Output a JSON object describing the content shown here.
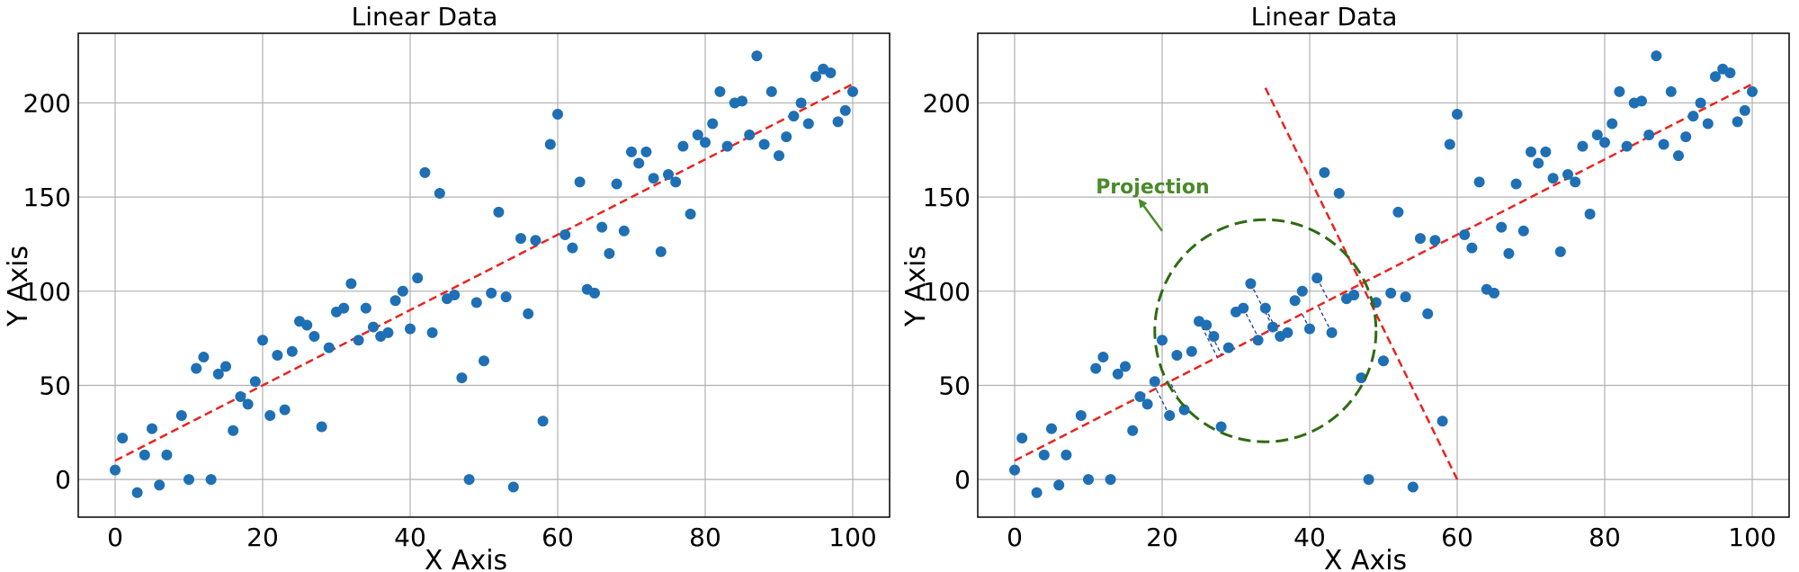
{
  "chart_data": [
    {
      "type": "scatter",
      "title": "Linear Data",
      "xlabel": "X Axis",
      "ylabel": "Y Axis",
      "xlim": [
        -5,
        105
      ],
      "ylim": [
        -20,
        237
      ],
      "xticks": [
        "0",
        "20",
        "40",
        "60",
        "80",
        "100"
      ],
      "yticks": [
        "0",
        "50",
        "100",
        "150",
        "200"
      ],
      "grid": true,
      "point_color": "#1f6fb5",
      "line_color": "#e8231f",
      "points": {
        "x": [
          0,
          1,
          3,
          4,
          5,
          6,
          7,
          9,
          10,
          11,
          12,
          13,
          14,
          15,
          16,
          17,
          18,
          19,
          20,
          21,
          22,
          23,
          24,
          25,
          26,
          27,
          28,
          29,
          30,
          31,
          32,
          33,
          34,
          35,
          36,
          37,
          38,
          39,
          40,
          41,
          42,
          43,
          44,
          45,
          46,
          47,
          48,
          49,
          50,
          51,
          52,
          53,
          54,
          55,
          56,
          57,
          58,
          59,
          60,
          61,
          62,
          63,
          64,
          65,
          66,
          67,
          68,
          69,
          70,
          71,
          72,
          73,
          74,
          75,
          76,
          77,
          78,
          79,
          80,
          81,
          82,
          83,
          84,
          85,
          86,
          87,
          88,
          89,
          90,
          91,
          92,
          93,
          94,
          95,
          96,
          97,
          98,
          99,
          100
        ],
        "y": [
          5,
          22,
          -7,
          13,
          27,
          -3,
          13,
          34,
          0,
          59,
          65,
          0,
          56,
          60,
          26,
          44,
          40,
          52,
          74,
          34,
          66,
          37,
          68,
          84,
          82,
          76,
          28,
          70,
          89,
          91,
          104,
          74,
          91,
          81,
          76,
          78,
          95,
          100,
          80,
          107,
          163,
          78,
          152,
          96,
          98,
          54,
          0,
          94,
          63,
          99,
          142,
          97,
          -4,
          128,
          88,
          127,
          31,
          178,
          194,
          130,
          123,
          158,
          101,
          99,
          134,
          120,
          157,
          132,
          174,
          168,
          174,
          160,
          121,
          162,
          158,
          177,
          141,
          183,
          179,
          189,
          206,
          177,
          200,
          201,
          183,
          225,
          178,
          206,
          172,
          182,
          193,
          200,
          189,
          214,
          218,
          216,
          190,
          196,
          206
        ]
      },
      "fit_line": {
        "x": [
          0,
          100
        ],
        "y": [
          10,
          210
        ]
      }
    },
    {
      "type": "scatter",
      "title": "Linear Data",
      "xlabel": "X Axis",
      "ylabel": "Y Axis",
      "xlim": [
        -5,
        105
      ],
      "ylim": [
        -20,
        237
      ],
      "xticks": [
        "0",
        "20",
        "40",
        "60",
        "80",
        "100"
      ],
      "yticks": [
        "0",
        "50",
        "100",
        "150",
        "200"
      ],
      "grid": true,
      "point_color": "#1f6fb5",
      "line_color": "#e8231f",
      "points": {
        "x": [
          0,
          1,
          3,
          4,
          5,
          6,
          7,
          9,
          10,
          11,
          12,
          13,
          14,
          15,
          16,
          17,
          18,
          19,
          20,
          21,
          22,
          23,
          24,
          25,
          26,
          27,
          28,
          29,
          30,
          31,
          32,
          33,
          34,
          35,
          36,
          37,
          38,
          39,
          40,
          41,
          42,
          43,
          44,
          45,
          46,
          47,
          48,
          49,
          50,
          51,
          52,
          53,
          54,
          55,
          56,
          57,
          58,
          59,
          60,
          61,
          62,
          63,
          64,
          65,
          66,
          67,
          68,
          69,
          70,
          71,
          72,
          73,
          74,
          75,
          76,
          77,
          78,
          79,
          80,
          81,
          82,
          83,
          84,
          85,
          86,
          87,
          88,
          89,
          90,
          91,
          92,
          93,
          94,
          95,
          96,
          97,
          98,
          99,
          100
        ],
        "y": [
          5,
          22,
          -7,
          13,
          27,
          -3,
          13,
          34,
          0,
          59,
          65,
          0,
          56,
          60,
          26,
          44,
          40,
          52,
          74,
          34,
          66,
          37,
          68,
          84,
          82,
          76,
          28,
          70,
          89,
          91,
          104,
          74,
          91,
          81,
          76,
          78,
          95,
          100,
          80,
          107,
          163,
          78,
          152,
          96,
          98,
          54,
          0,
          94,
          63,
          99,
          142,
          97,
          -4,
          128,
          88,
          127,
          31,
          178,
          194,
          130,
          123,
          158,
          101,
          99,
          134,
          120,
          157,
          132,
          174,
          168,
          174,
          160,
          121,
          162,
          158,
          177,
          141,
          183,
          179,
          189,
          206,
          177,
          200,
          201,
          183,
          225,
          178,
          206,
          172,
          182,
          193,
          200,
          189,
          214,
          218,
          216,
          190,
          196,
          206
        ]
      },
      "fit_line": {
        "x": [
          0,
          100
        ],
        "y": [
          10,
          210
        ]
      },
      "perpendicular_line": {
        "x": [
          34,
          60
        ],
        "y": [
          208,
          0
        ]
      },
      "projection_circle": {
        "center_x": 34,
        "center_y": 79,
        "radius_x": 15,
        "radius_y": 59,
        "color": "#2e6b12"
      },
      "projected_points_x": [
        21,
        23,
        25,
        26,
        31,
        32,
        33,
        34,
        35,
        36,
        40,
        41,
        43,
        46
      ],
      "annotation": {
        "text": "Projection",
        "color": "#4a8a2a",
        "text_x": 11,
        "text_y": 152,
        "arrow_from": [
          20,
          132
        ],
        "arrow_to": [
          17,
          148
        ]
      }
    }
  ]
}
